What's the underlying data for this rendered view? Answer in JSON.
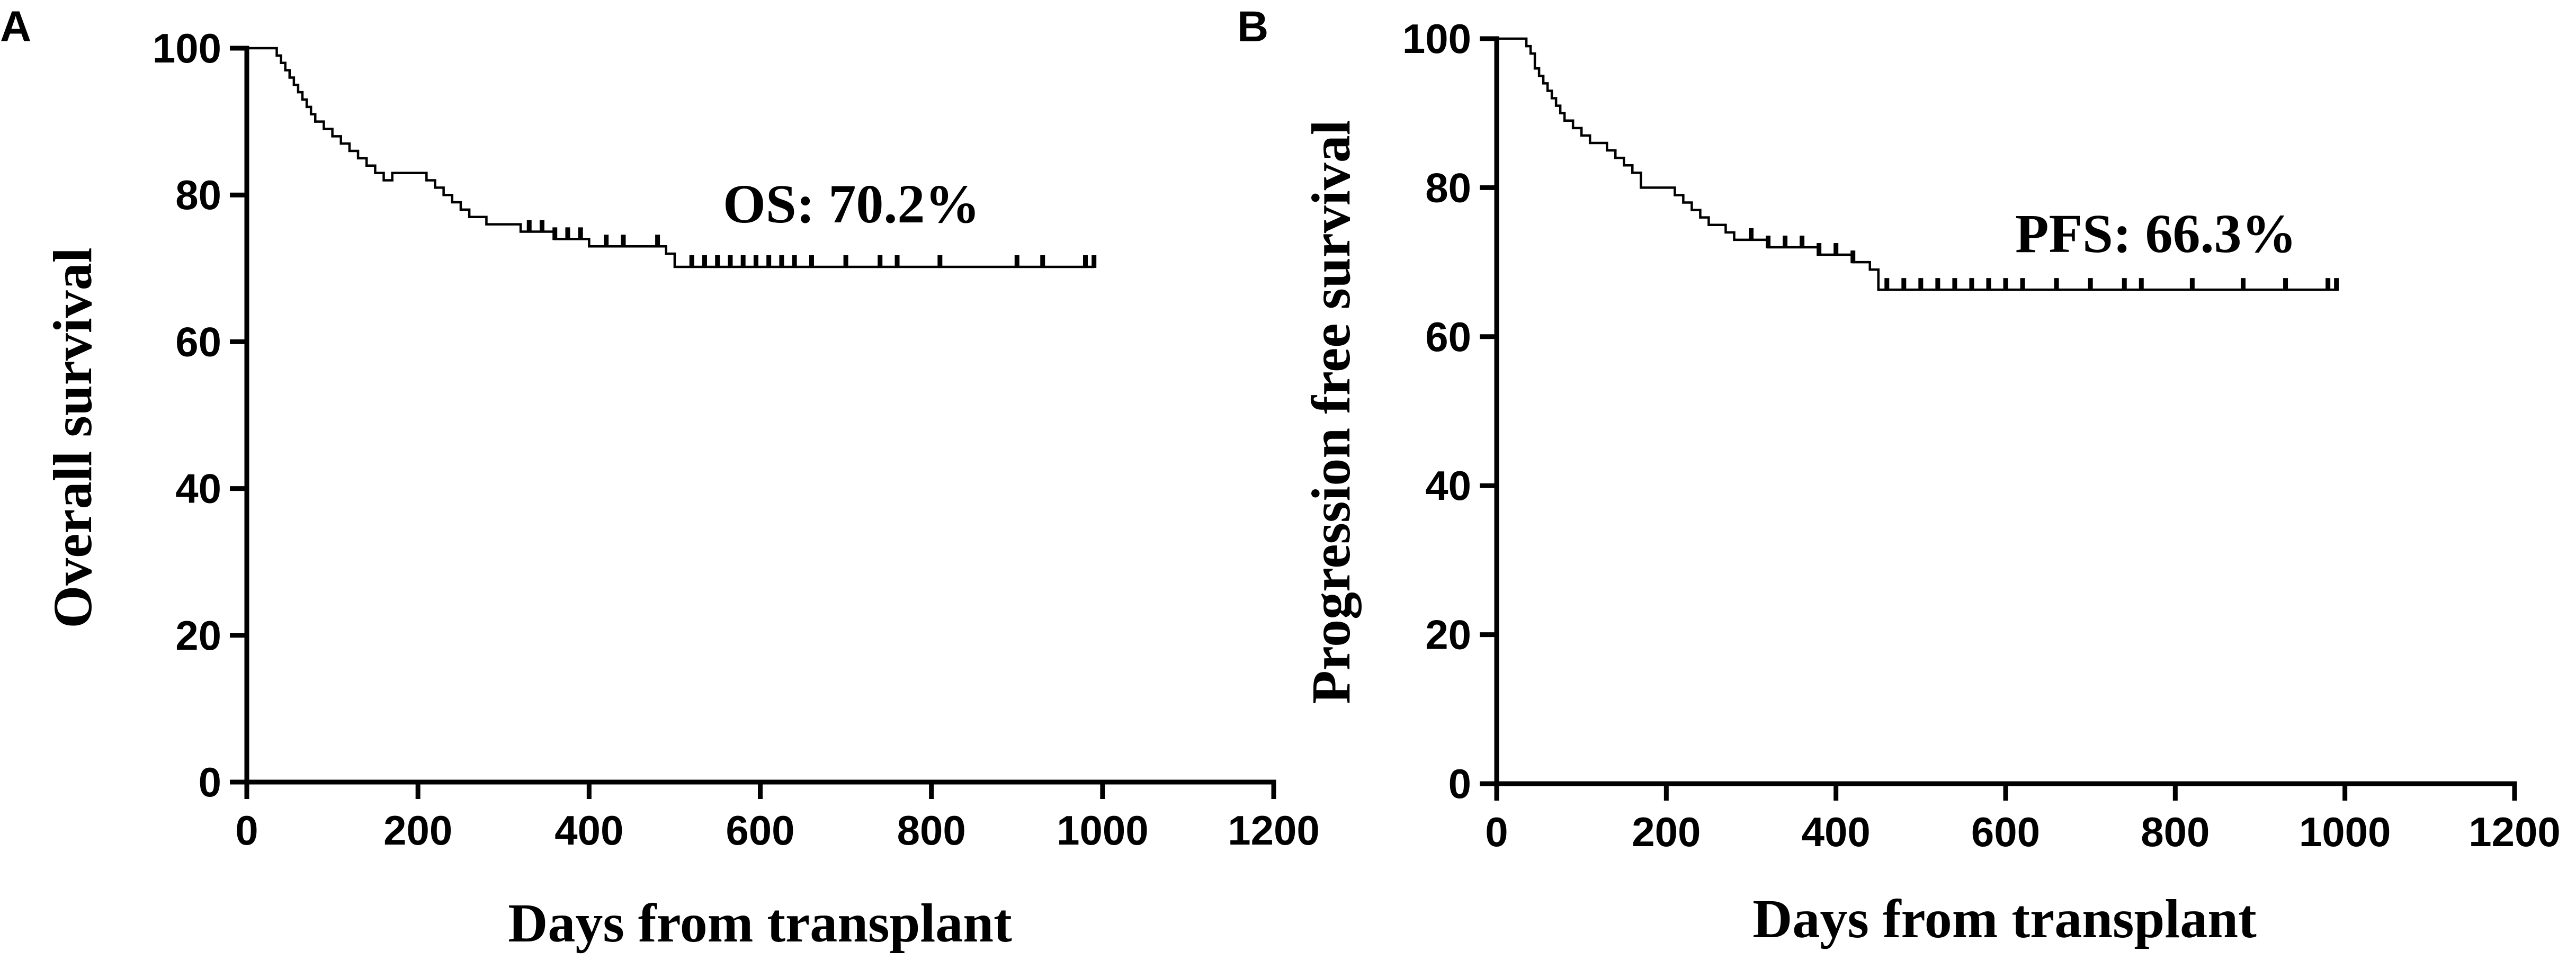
{
  "chart_data": [
    {
      "type": "line",
      "subtype": "kaplan-meier",
      "panel_label": "A",
      "title": "",
      "xlabel": "Days from transplant",
      "ylabel": "Overall survival",
      "xlim": [
        0,
        1200
      ],
      "ylim": [
        0,
        100
      ],
      "xticks": [
        0,
        200,
        400,
        600,
        800,
        1000,
        1200
      ],
      "yticks": [
        0,
        20,
        40,
        60,
        80,
        100
      ],
      "grid": false,
      "legend": "none",
      "annotation": "OS: 70.2%",
      "series": [
        {
          "x": [
            0,
            30,
            35,
            40,
            45,
            50,
            55,
            60,
            65,
            70,
            75,
            80,
            90,
            100,
            110,
            120,
            130,
            140,
            150,
            160,
            170,
            200,
            210,
            220,
            230,
            240,
            250,
            260,
            270,
            280,
            290,
            300,
            320,
            340,
            360,
            380,
            400,
            490,
            500,
            990
          ],
          "y": [
            100,
            100,
            99,
            98,
            97,
            96,
            95,
            94,
            93,
            92,
            91,
            90,
            89,
            88,
            87,
            86,
            85,
            84,
            83,
            82,
            83,
            83,
            82,
            81,
            80,
            79,
            78,
            77,
            77,
            76,
            76,
            76,
            75,
            75,
            74,
            74,
            73,
            72,
            70.2,
            70.2
          ],
          "censored_x": [
            330,
            345,
            360,
            375,
            390,
            420,
            440,
            480,
            520,
            535,
            550,
            565,
            580,
            595,
            610,
            625,
            640,
            660,
            700,
            740,
            760,
            810,
            900,
            930,
            980
          ]
        }
      ]
    },
    {
      "type": "line",
      "subtype": "kaplan-meier",
      "panel_label": "B",
      "title": "",
      "xlabel": "Days from transplant",
      "ylabel": "Progression free survival",
      "xlim": [
        0,
        1200
      ],
      "ylim": [
        0,
        100
      ],
      "xticks": [
        0,
        200,
        400,
        600,
        800,
        1000,
        1200
      ],
      "yticks": [
        0,
        20,
        40,
        60,
        80,
        100
      ],
      "grid": false,
      "legend": "none",
      "annotation": "PFS: 66.3%",
      "series": [
        {
          "x": [
            0,
            30,
            35,
            40,
            45,
            50,
            55,
            60,
            65,
            70,
            75,
            80,
            90,
            100,
            110,
            120,
            130,
            140,
            150,
            160,
            170,
            200,
            210,
            220,
            230,
            240,
            250,
            260,
            270,
            280,
            300,
            320,
            340,
            360,
            380,
            400,
            420,
            440,
            450,
            990
          ],
          "y": [
            100,
            100,
            99,
            98,
            96,
            95,
            94,
            93,
            92,
            91,
            90,
            89,
            88,
            87,
            86,
            86,
            85,
            84,
            83,
            82,
            80,
            80,
            79,
            78,
            77,
            76,
            75,
            75,
            74,
            73,
            73,
            72,
            72,
            72,
            71,
            71,
            70,
            69,
            66.3,
            66.3
          ],
          "censored_x": [
            300,
            320,
            340,
            360,
            380,
            400,
            420,
            460,
            480,
            500,
            520,
            540,
            560,
            580,
            600,
            620,
            660,
            700,
            740,
            760,
            820,
            880,
            930,
            980
          ]
        }
      ]
    }
  ]
}
